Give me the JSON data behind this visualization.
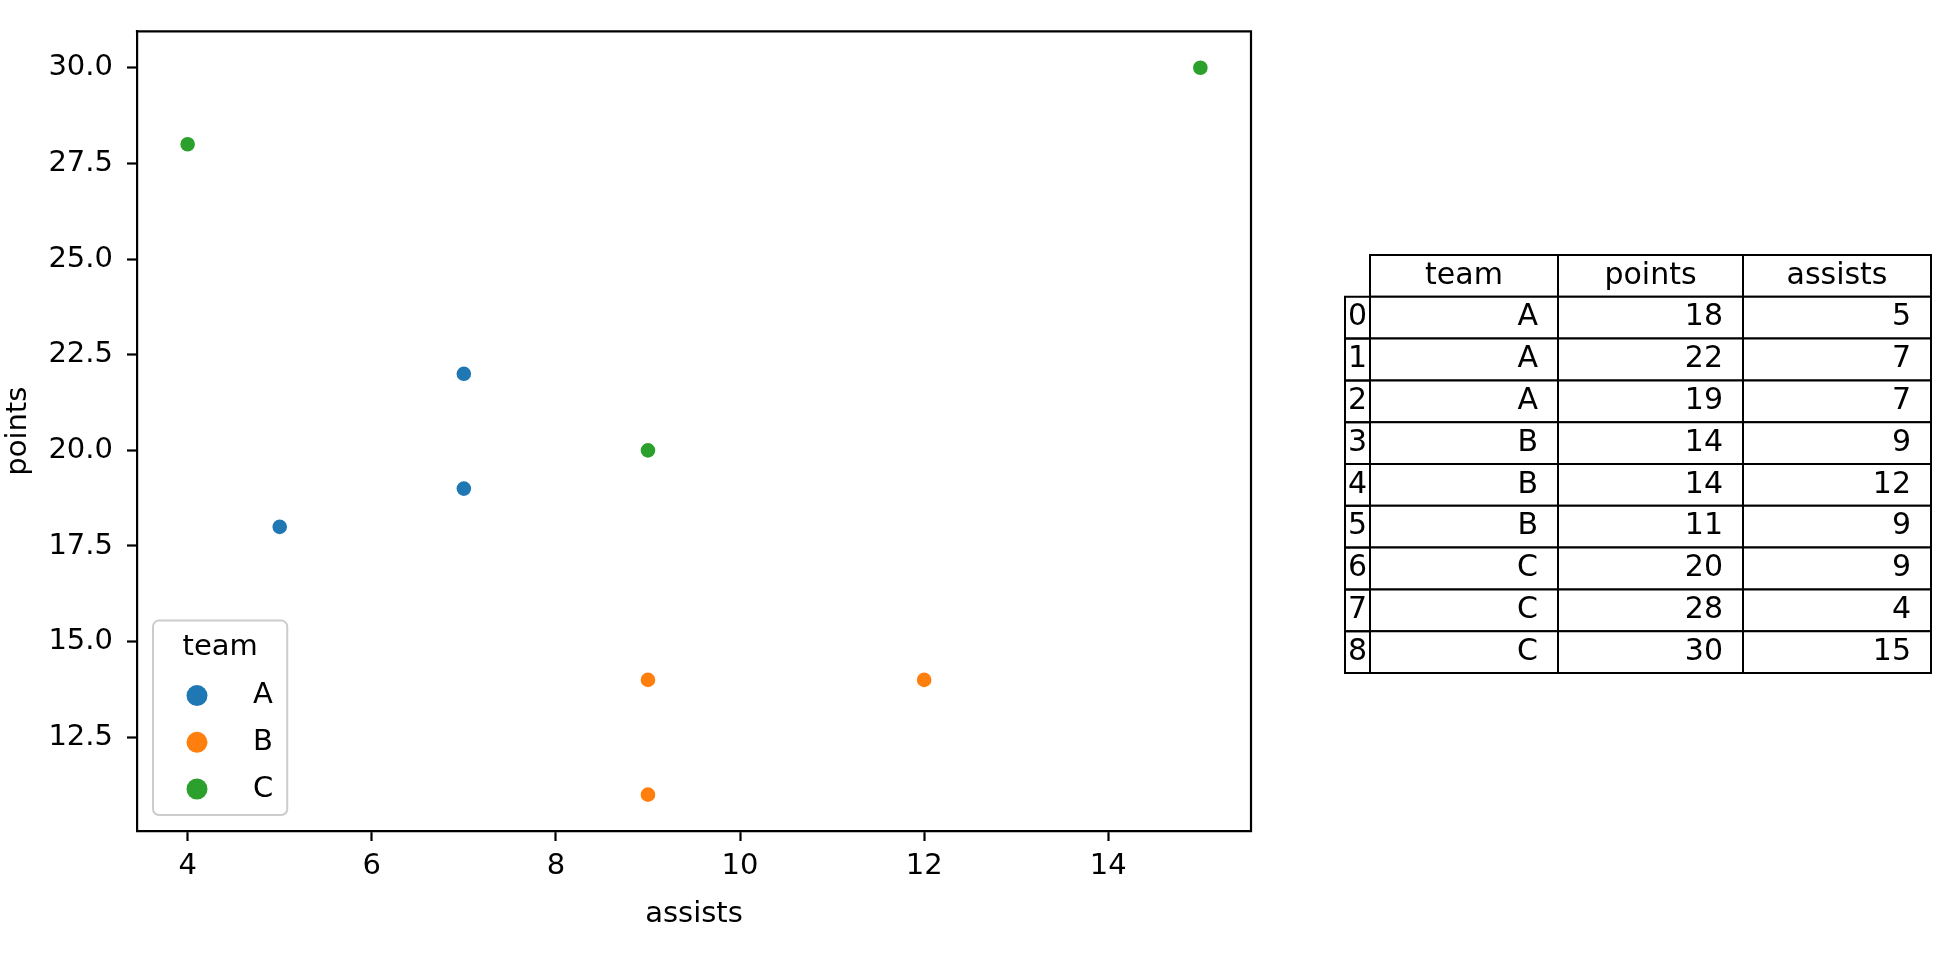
{
  "chart_data": [
    {
      "type": "scatter",
      "xlabel": "assists",
      "ylabel": "points",
      "legend_title": "team",
      "series": [
        {
          "name": "A",
          "color": "#1f77b4",
          "x": [
            5,
            7,
            7
          ],
          "values": [
            18,
            22,
            19
          ]
        },
        {
          "name": "B",
          "color": "#ff7f0e",
          "x": [
            9,
            12,
            9
          ],
          "values": [
            14,
            14,
            11
          ]
        },
        {
          "name": "C",
          "color": "#2ca02c",
          "x": [
            9,
            4,
            15
          ],
          "values": [
            20,
            28,
            30
          ]
        }
      ],
      "xlim": [
        3.45,
        15.55
      ],
      "ylim": [
        10.05,
        30.95
      ],
      "xticks": [
        4,
        6,
        8,
        10,
        12,
        14
      ],
      "yticks": [
        12.5,
        {
          "value": 15,
          "label": "15.0"
        },
        17.5,
        {
          "value": 20,
          "label": "20.0"
        },
        22.5,
        {
          "value": 25,
          "label": "25.0"
        },
        27.5,
        {
          "value": 30,
          "label": "30.0"
        }
      ],
      "grid": false,
      "legend": "bottom left",
      "marker": "circle"
    },
    {
      "type": "heatmap",
      "categories": [
        "team",
        "points",
        "assists"
      ],
      "y_categories": [
        "0",
        "1",
        "2",
        "3",
        "4",
        "5",
        "6",
        "7",
        "8"
      ],
      "cells": [
        [
          null,
          null,
          null
        ],
        [
          null,
          null,
          null
        ],
        [
          null,
          null,
          null
        ],
        [
          null,
          null,
          null
        ],
        [
          null,
          null,
          null
        ],
        [
          null,
          null,
          null
        ],
        [
          null,
          null,
          null
        ],
        [
          null,
          null,
          null
        ],
        [
          null,
          null,
          null
        ]
      ],
      "cell_labels": [
        [
          "A",
          "18",
          "5"
        ],
        [
          "A",
          "22",
          "7"
        ],
        [
          "A",
          "19",
          "7"
        ],
        [
          "B",
          "14",
          "9"
        ],
        [
          "B",
          "14",
          "12"
        ],
        [
          "B",
          "11",
          "9"
        ],
        [
          "C",
          "20",
          "9"
        ],
        [
          "C",
          "28",
          "4"
        ],
        [
          "C",
          "30",
          "15"
        ]
      ]
    }
  ]
}
